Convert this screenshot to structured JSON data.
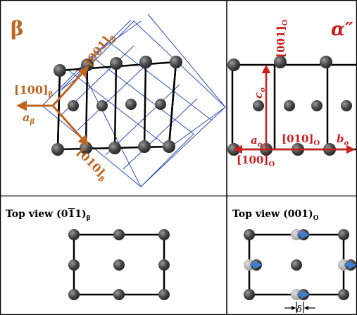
{
  "colors": {
    "beta": "#c0651e",
    "alpha": "#cc1f1f",
    "cell": "#2f4fb8",
    "atom": "#4a4a4a",
    "ghost_atom": "#a9a9a9",
    "shift_arrow": "#3d7fd6",
    "frame": "#000000"
  },
  "beta": {
    "title": "β",
    "dir_001": "[001]",
    "dir_100": "[100]",
    "dir_010": "[010]",
    "sub": "β",
    "a_label": "a",
    "top_view_label": "Top view (0",
    "top_view_bar": "1",
    "top_view_rest": "1)",
    "top_view_sub": "β"
  },
  "alpha": {
    "title": "α″",
    "dir_001": "[001]",
    "dir_010": "[010]",
    "dir_100": "[100]",
    "sub": "O",
    "c_label": "c",
    "a_label": "a",
    "b_label": "b",
    "lattice_sub": "o",
    "top_view_label": "Top view (001)",
    "top_view_sub": "O",
    "delta_label": "δ"
  }
}
